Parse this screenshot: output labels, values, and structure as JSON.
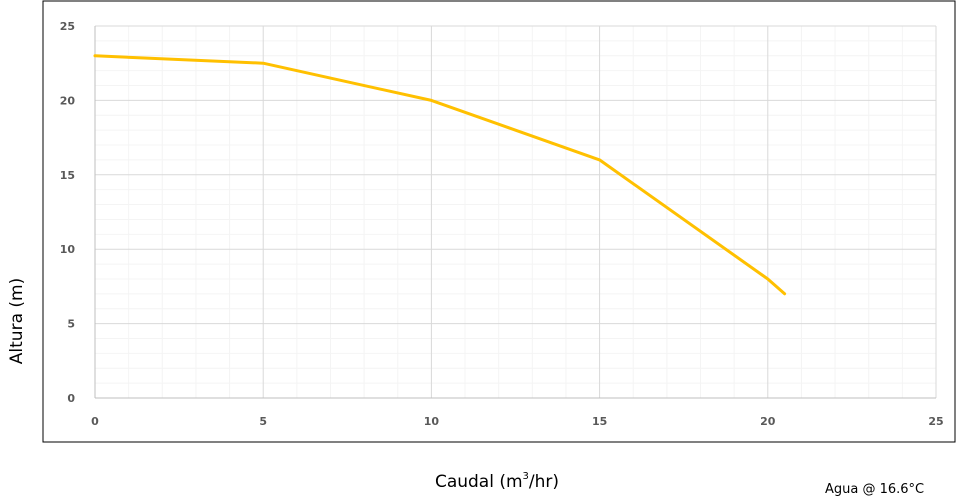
{
  "chart_data": {
    "type": "line",
    "title": "",
    "xlabel": "Caudal (m",
    "xlabel_superscript": "3",
    "xlabel_suffix": "/hr)",
    "ylabel": "Altura (m)",
    "xlim": [
      0,
      25
    ],
    "ylim": [
      0,
      25
    ],
    "x_ticks": [
      "0",
      "5",
      "10",
      "15",
      "20",
      "25"
    ],
    "y_ticks": [
      "0",
      "5",
      "10",
      "15",
      "20",
      "25"
    ],
    "grid": true,
    "series": [
      {
        "color": "#FFC000",
        "x": [
          0,
          5,
          10,
          15,
          20,
          20.5
        ],
        "y": [
          23,
          22.5,
          20,
          16,
          8,
          7
        ]
      }
    ],
    "annotation": "Agua @ 16.6°C"
  }
}
